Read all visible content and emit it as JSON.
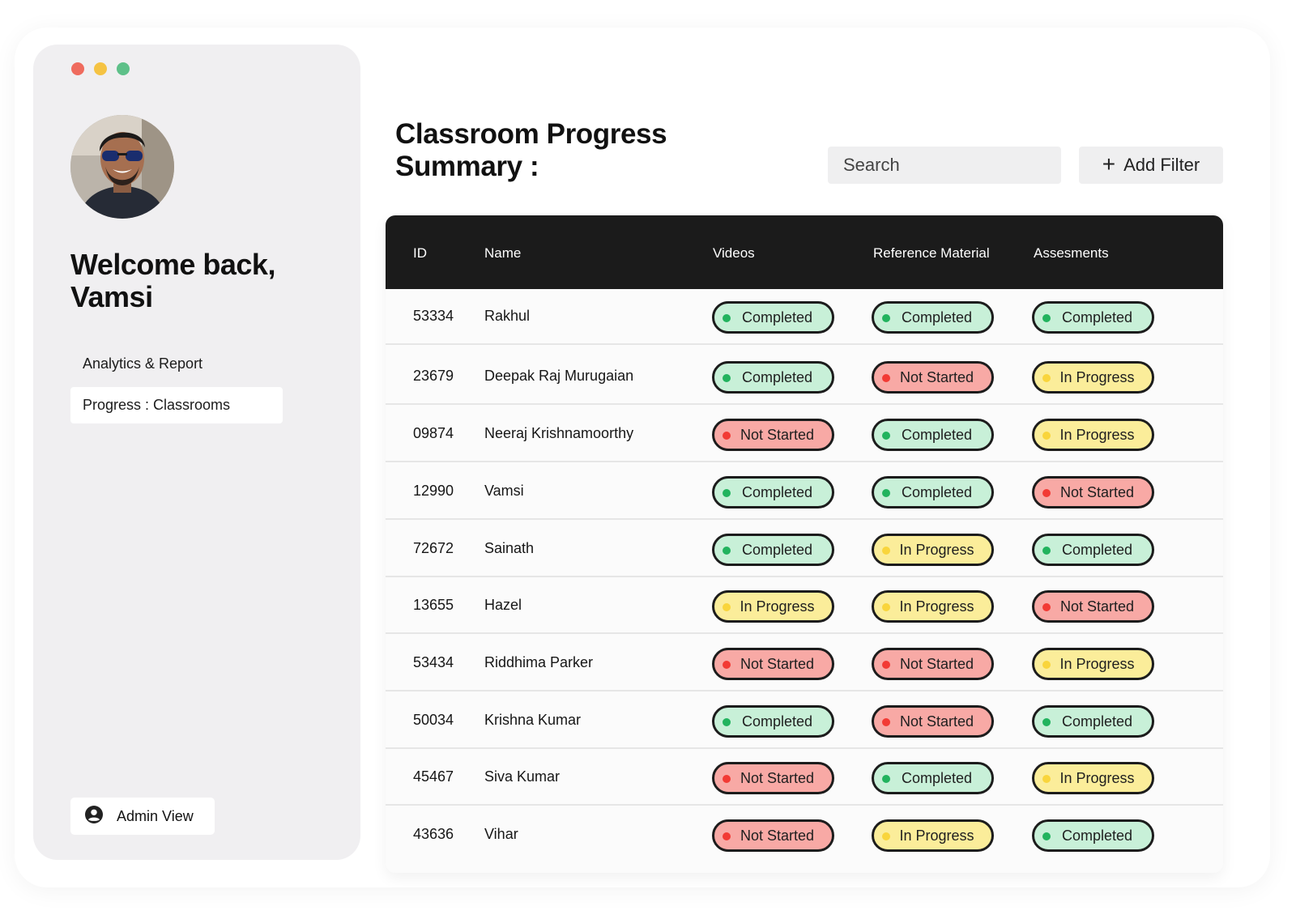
{
  "window": {
    "traffic_lights": [
      "#ef6b5e",
      "#f5c343",
      "#5ec089"
    ]
  },
  "sidebar": {
    "welcome": "Welcome back, Vamsi",
    "nav": [
      {
        "label": "Analytics & Report",
        "active": false
      },
      {
        "label": "Progress : Classrooms",
        "active": true
      }
    ],
    "admin_label": "Admin View"
  },
  "header": {
    "title": "Classroom Progress Summary :",
    "search_placeholder": "Search",
    "filter_label": "Add Filter"
  },
  "table": {
    "columns": [
      "ID",
      "Name",
      "Videos",
      "Reference Material",
      "Assesments"
    ],
    "rows": [
      {
        "id": "53334",
        "name": "Rakhul",
        "videos": "Completed",
        "reference": "Completed",
        "assessments": "Completed"
      },
      {
        "id": "23679",
        "name": "Deepak Raj Murugaian",
        "videos": "Completed",
        "reference": "Not Started",
        "assessments": "In Progress"
      },
      {
        "id": "09874",
        "name": "Neeraj Krishnamoorthy",
        "videos": "Not Started",
        "reference": "Completed",
        "assessments": "In Progress"
      },
      {
        "id": "12990",
        "name": "Vamsi",
        "videos": "Completed",
        "reference": "Completed",
        "assessments": "Not Started"
      },
      {
        "id": "72672",
        "name": "Sainath",
        "videos": "Completed",
        "reference": "In Progress",
        "assessments": "Completed"
      },
      {
        "id": "13655",
        "name": "Hazel",
        "videos": "In Progress",
        "reference": "In Progress",
        "assessments": "Not Started"
      },
      {
        "id": "53434",
        "name": "Riddhima Parker",
        "videos": "Not Started",
        "reference": "Not Started",
        "assessments": "In Progress"
      },
      {
        "id": "50034",
        "name": "Krishna Kumar",
        "videos": "Completed",
        "reference": "Not Started",
        "assessments": "Completed"
      },
      {
        "id": "45467",
        "name": "Siva Kumar",
        "videos": "Not Started",
        "reference": "Completed",
        "assessments": "In Progress"
      },
      {
        "id": "43636",
        "name": "Vihar",
        "videos": "Not Started",
        "reference": "In Progress",
        "assessments": "Completed"
      }
    ]
  },
  "status_colors": {
    "Completed": {
      "fill": "#c8f0d8",
      "dot": "#22b35e"
    },
    "Not Started": {
      "fill": "#f8a9a5",
      "dot": "#f23a34"
    },
    "In Progress": {
      "fill": "#fbed9a",
      "dot": "#f9d53c"
    }
  }
}
